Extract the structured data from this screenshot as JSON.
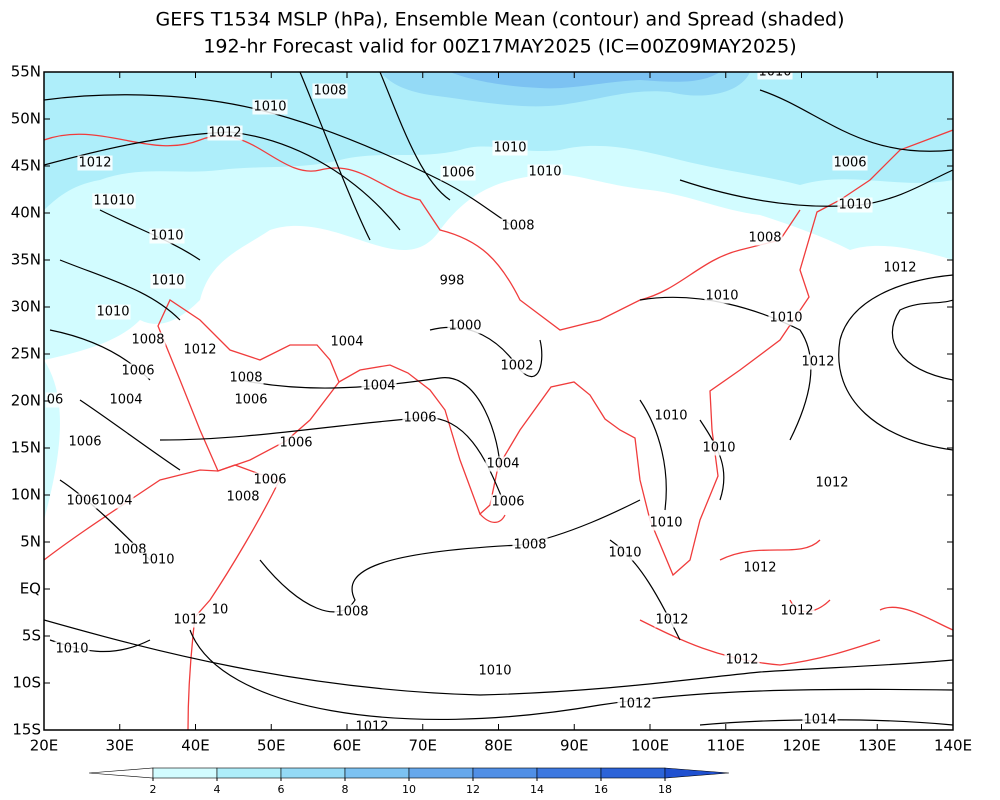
{
  "title": [
    "GEFS T1534 MSLP (hPa), Ensemble Mean (contour) and Spread (shaded)",
    "192-hr Forecast valid for 00Z17MAY2025 (IC=00Z09MAY2025)"
  ],
  "map": {
    "lat_labels": [
      "55N",
      "50N",
      "45N",
      "40N",
      "35N",
      "30N",
      "25N",
      "20N",
      "15N",
      "10N",
      "5N",
      "EQ",
      "5S",
      "10S",
      "15S"
    ],
    "lon_labels": [
      "20E",
      "30E",
      "40E",
      "50E",
      "60E",
      "70E",
      "80E",
      "90E",
      "100E",
      "110E",
      "120E",
      "130E",
      "140E"
    ]
  },
  "contour_labels": [
    "1008",
    "1010",
    "1012",
    "1012",
    "11010",
    "1010",
    "1010",
    "1010",
    "1008",
    "1012",
    "1006",
    "1008",
    "1004",
    "1006",
    "06",
    "1006",
    "1006",
    "1006",
    "1008",
    "1006",
    "1004",
    "1008",
    "1010",
    "1012",
    "10",
    "1010",
    "1008",
    "1008",
    "1006",
    "1004",
    "1006",
    "1004",
    "1004",
    "1002",
    "1000",
    "998",
    "1008",
    "1006",
    "1010",
    "1010",
    "1006",
    "1010",
    "1008",
    "1012",
    "1010",
    "1010",
    "1012",
    "1010",
    "1010",
    "1012",
    "1010",
    "1010",
    "1012",
    "1012",
    "1012",
    "1012",
    "1010",
    "1012",
    "1014",
    "1012",
    "1010"
  ],
  "colorbar": {
    "ticks": [
      2,
      4,
      6,
      8,
      10,
      12,
      14,
      16,
      18
    ],
    "colors": [
      "#ffffff",
      "#d2fcff",
      "#aeeefa",
      "#94daf6",
      "#7cc2f2",
      "#66a8ec",
      "#508fe6",
      "#3c78e0",
      "#2c63d8",
      "#1f50d0"
    ]
  }
}
